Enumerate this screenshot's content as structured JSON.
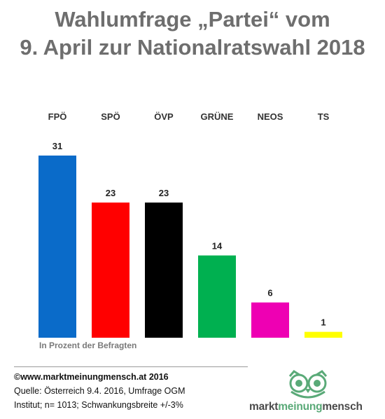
{
  "title_line1": "Wahlumfrage „Partei“ vom",
  "title_line2": "9. April zur Nationalratswahl 2018",
  "chart_data": {
    "type": "bar",
    "categories": [
      "FPÖ",
      "SPÖ",
      "ÖVP",
      "GRÜNE",
      "NEOS",
      "TS"
    ],
    "values": [
      31,
      23,
      23,
      14,
      6,
      1
    ],
    "colors": [
      "#0a6bc9",
      "#ff0000",
      "#000000",
      "#00b050",
      "#ee00b3",
      "#ffff00"
    ],
    "ylim": [
      0,
      31
    ],
    "grid": false,
    "legend": "none",
    "note": "In Prozent der Befragten"
  },
  "footer": {
    "copyright": "©www.marktmeinungmensch.at 2016",
    "source_line1": "Quelle: Österreich  9.4. 2016, Umfrage OGM",
    "source_line2": "Institut; n= 1013; Schwankungsbreite +/-3%"
  },
  "brand": {
    "part1": "markt",
    "part2": "meinung",
    "part3": "mensch",
    "dark_color": "#4a4a4a",
    "green_color": "#5aaa78",
    "logo_icon": "owl-icon"
  }
}
